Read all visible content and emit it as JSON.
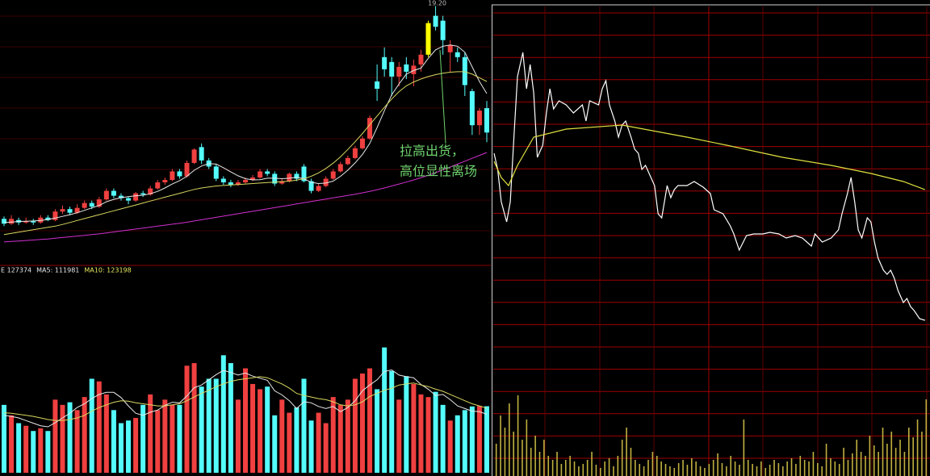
{
  "chart_data": [
    {
      "type": "candlestick",
      "peak_label": "19.20",
      "annotation": [
        "拉高出货，",
        "高位显性离场"
      ],
      "annotation_color": "#6fd36f",
      "up_color": "#f04040",
      "down_color": "#54fcfc",
      "highlight": 58,
      "highlight_color": "#ffff00",
      "ylim": [
        8.5,
        19.45
      ],
      "ohlc": [
        [
          10.45,
          10.55,
          10.15,
          10.25
        ],
        [
          10.25,
          10.6,
          10.2,
          10.45
        ],
        [
          10.4,
          10.5,
          10.2,
          10.3
        ],
        [
          10.3,
          10.5,
          10.25,
          10.35
        ],
        [
          10.35,
          10.45,
          10.2,
          10.3
        ],
        [
          10.3,
          10.6,
          10.25,
          10.5
        ],
        [
          10.5,
          10.6,
          10.35,
          10.4
        ],
        [
          10.4,
          10.85,
          10.35,
          10.75
        ],
        [
          10.75,
          11.0,
          10.65,
          10.85
        ],
        [
          10.85,
          10.95,
          10.6,
          10.7
        ],
        [
          10.7,
          11.05,
          10.65,
          10.9
        ],
        [
          10.9,
          11.2,
          10.85,
          11.1
        ],
        [
          11.1,
          11.2,
          10.85,
          10.95
        ],
        [
          10.95,
          11.35,
          10.9,
          11.25
        ],
        [
          11.25,
          11.7,
          11.2,
          11.6
        ],
        [
          11.6,
          11.7,
          11.3,
          11.4
        ],
        [
          11.4,
          11.5,
          11.2,
          11.3
        ],
        [
          11.3,
          11.35,
          11.05,
          11.2
        ],
        [
          11.2,
          11.55,
          11.15,
          11.5
        ],
        [
          11.5,
          11.6,
          11.35,
          11.45
        ],
        [
          11.45,
          11.8,
          11.4,
          11.7
        ],
        [
          11.7,
          12.05,
          11.65,
          11.95
        ],
        [
          11.95,
          12.15,
          11.85,
          12.05
        ],
        [
          12.05,
          12.5,
          12.0,
          12.4
        ],
        [
          12.4,
          12.5,
          12.1,
          12.2
        ],
        [
          12.2,
          12.85,
          12.15,
          12.75
        ],
        [
          12.75,
          13.35,
          12.7,
          13.3
        ],
        [
          13.4,
          13.55,
          12.7,
          12.85
        ],
        [
          12.85,
          12.95,
          12.5,
          12.6
        ],
        [
          12.6,
          12.7,
          12.0,
          12.1
        ],
        [
          12.1,
          12.2,
          11.85,
          11.95
        ],
        [
          11.95,
          12.05,
          11.75,
          11.85
        ],
        [
          11.85,
          12.05,
          11.8,
          11.95
        ],
        [
          11.95,
          12.15,
          11.9,
          12.05
        ],
        [
          12.05,
          12.25,
          12.0,
          12.15
        ],
        [
          12.15,
          12.5,
          12.1,
          12.4
        ],
        [
          12.4,
          12.5,
          12.2,
          12.3
        ],
        [
          12.3,
          12.4,
          11.8,
          11.9
        ],
        [
          11.9,
          12.1,
          11.85,
          12.0
        ],
        [
          12.0,
          12.35,
          11.95,
          12.3
        ],
        [
          12.3,
          12.4,
          12.0,
          12.1
        ],
        [
          12.6,
          12.7,
          11.95,
          12.0
        ],
        [
          12.0,
          12.1,
          11.5,
          11.6
        ],
        [
          11.6,
          11.9,
          11.55,
          11.8
        ],
        [
          11.8,
          12.2,
          11.75,
          12.1
        ],
        [
          12.1,
          12.5,
          12.05,
          12.4
        ],
        [
          12.4,
          12.8,
          12.35,
          12.7
        ],
        [
          12.7,
          13.05,
          12.65,
          12.95
        ],
        [
          12.95,
          13.45,
          12.9,
          13.35
        ],
        [
          13.35,
          13.85,
          13.3,
          13.75
        ],
        [
          13.75,
          14.7,
          13.7,
          14.6
        ],
        [
          16.1,
          16.8,
          15.3,
          15.8
        ],
        [
          17.1,
          17.5,
          16.3,
          16.6
        ],
        [
          16.9,
          17.1,
          15.5,
          16.3
        ],
        [
          16.3,
          16.9,
          15.9,
          16.7
        ],
        [
          16.8,
          17.1,
          16.2,
          16.5
        ],
        [
          16.4,
          17.0,
          15.9,
          16.75
        ],
        [
          16.8,
          17.4,
          16.5,
          17.2
        ],
        [
          17.2,
          18.6,
          17.1,
          18.5
        ],
        [
          18.8,
          19.2,
          18.2,
          18.35
        ],
        [
          18.6,
          18.8,
          17.2,
          17.8
        ],
        [
          17.3,
          17.8,
          16.5,
          17.6
        ],
        [
          17.3,
          17.5,
          16.9,
          17.1
        ],
        [
          17.1,
          17.3,
          15.5,
          15.95
        ],
        [
          15.7,
          15.8,
          13.9,
          14.3
        ],
        [
          14.3,
          15.0,
          13.9,
          14.9
        ],
        [
          15.0,
          15.3,
          13.6,
          14.0
        ]
      ],
      "lines": [
        {
          "color": "#e8e8e8",
          "values": [
            10.3,
            10.32,
            10.34,
            10.35,
            10.36,
            10.38,
            10.42,
            10.48,
            10.55,
            10.62,
            10.7,
            10.8,
            10.9,
            11.0,
            11.15,
            11.25,
            11.32,
            11.36,
            11.4,
            11.42,
            11.48,
            11.58,
            11.72,
            11.88,
            12.02,
            12.2,
            12.45,
            12.62,
            12.72,
            12.7,
            12.55,
            12.38,
            12.22,
            12.1,
            12.05,
            12.06,
            12.12,
            12.12,
            12.1,
            12.12,
            12.16,
            12.1,
            11.95,
            11.9,
            11.92,
            12.0,
            12.2,
            12.45,
            12.75,
            13.1,
            13.55,
            14.2,
            14.9,
            15.55,
            16.0,
            16.4,
            16.55,
            16.65,
            17.05,
            17.4,
            17.55,
            17.6,
            17.55,
            17.3,
            16.7,
            16.1,
            15.6
          ]
        },
        {
          "color": "#d8d860",
          "values": [
            9.8,
            9.85,
            9.9,
            9.95,
            10.0,
            10.05,
            10.1,
            10.15,
            10.22,
            10.3,
            10.38,
            10.46,
            10.54,
            10.62,
            10.7,
            10.78,
            10.86,
            10.94,
            11.02,
            11.1,
            11.18,
            11.26,
            11.34,
            11.42,
            11.5,
            11.58,
            11.66,
            11.72,
            11.76,
            11.8,
            11.82,
            11.84,
            11.86,
            11.88,
            11.9,
            11.92,
            11.94,
            11.96,
            11.98,
            12.0,
            12.04,
            12.1,
            12.2,
            12.34,
            12.52,
            12.74,
            13.0,
            13.3,
            13.62,
            13.96,
            14.32,
            14.68,
            15.04,
            15.38,
            15.68,
            15.92,
            16.08,
            16.2,
            16.3,
            16.38,
            16.44,
            16.48,
            16.5,
            16.5,
            16.4,
            16.25,
            16.1
          ]
        },
        {
          "color": "#d030d0",
          "values": [
            9.5,
            9.52,
            9.54,
            9.56,
            9.58,
            9.6,
            9.62,
            9.65,
            9.68,
            9.71,
            9.74,
            9.77,
            9.8,
            9.83,
            9.87,
            9.91,
            9.95,
            9.99,
            10.03,
            10.07,
            10.11,
            10.15,
            10.19,
            10.23,
            10.27,
            10.31,
            10.36,
            10.41,
            10.46,
            10.51,
            10.56,
            10.61,
            10.66,
            10.71,
            10.76,
            10.81,
            10.86,
            10.91,
            10.96,
            11.01,
            11.06,
            11.11,
            11.16,
            11.21,
            11.26,
            11.31,
            11.36,
            11.41,
            11.46,
            11.52,
            11.58,
            11.65,
            11.72,
            11.8,
            11.88,
            11.96,
            12.05,
            12.14,
            12.24,
            12.35,
            12.46,
            12.58,
            12.7,
            12.82,
            12.94,
            13.06,
            13.18
          ]
        }
      ]
    },
    {
      "type": "bar",
      "legend": [
        {
          "text": "E 127374",
          "color": "#e8e8e8"
        },
        {
          "text": "MA5: 111981",
          "color": "#e8e8e8"
        },
        {
          "text": "MA10: 123198",
          "color": "#e8e860"
        }
      ],
      "ylim": [
        0,
        380000
      ],
      "values": [
        130000,
        110000,
        95000,
        90000,
        80000,
        85000,
        80000,
        140000,
        130000,
        135000,
        120000,
        145000,
        180000,
        175000,
        150000,
        120000,
        95000,
        100000,
        105000,
        130000,
        150000,
        120000,
        140000,
        130000,
        130000,
        205000,
        210000,
        165000,
        180000,
        180000,
        225000,
        210000,
        140000,
        200000,
        170000,
        160000,
        165000,
        110000,
        140000,
        115000,
        125000,
        180000,
        100000,
        115000,
        95000,
        145000,
        130000,
        140000,
        180000,
        190000,
        200000,
        160000,
        240000,
        195000,
        140000,
        185000,
        170000,
        150000,
        145000,
        155000,
        130000,
        100000,
        110000,
        120000,
        127000,
        128000,
        127374
      ],
      "lines": [
        {
          "color": "#e8e8e8",
          "values": [
            110000,
            108000,
            105000,
            100000,
            95000,
            90000,
            88000,
            96000,
            105000,
            114000,
            125000,
            132000,
            142000,
            150000,
            154000,
            154000,
            144000,
            128000,
            114000,
            110000,
            116000,
            120000,
            129000,
            135000,
            134000,
            147000,
            163000,
            168000,
            178000,
            188000,
            196000,
            192000,
            187000,
            191000,
            185000,
            181000,
            177000,
            157000,
            149000,
            138000,
            123000,
            136000,
            134000,
            127000,
            123000,
            127000,
            117000,
            125000,
            138000,
            157000,
            168000,
            178000,
            194000,
            197000,
            187000,
            184000,
            182000,
            169000,
            160000,
            148000,
            150000,
            140000,
            128000,
            123000,
            118000,
            117000,
            111981
          ]
        },
        {
          "color": "#d8d860",
          "values": [
            115000,
            114000,
            112000,
            110000,
            108000,
            105000,
            102000,
            100000,
            100000,
            102000,
            105000,
            110000,
            118000,
            125000,
            130000,
            135000,
            138000,
            137000,
            134000,
            132000,
            130000,
            128000,
            128000,
            130000,
            132000,
            138000,
            145000,
            152000,
            158000,
            165000,
            170000,
            175000,
            178000,
            180000,
            182000,
            184000,
            182000,
            176000,
            170000,
            162000,
            152000,
            148000,
            145000,
            142000,
            140000,
            136000,
            130000,
            128000,
            130000,
            136000,
            146000,
            152000,
            158000,
            162000,
            168000,
            170000,
            172000,
            168000,
            165000,
            160000,
            156000,
            150000,
            144000,
            138000,
            132000,
            128000,
            123198
          ]
        }
      ]
    },
    {
      "type": "line",
      "xlim": [
        0,
        240
      ],
      "ylim": [
        0,
        392
      ],
      "series": [
        {
          "color": "#ffffff",
          "x": [
            0,
            2,
            4,
            7,
            9,
            11,
            13,
            16,
            18,
            20,
            22,
            24,
            27,
            29,
            31,
            33,
            36,
            40,
            44,
            49,
            51,
            53,
            58,
            60,
            62,
            64,
            67,
            69,
            71,
            73,
            76,
            78,
            80,
            82,
            84,
            87,
            89,
            91,
            93,
            96,
            98,
            100,
            102,
            107,
            111,
            116,
            120,
            122,
            127,
            131,
            133,
            136,
            140,
            144,
            149,
            153,
            158,
            162,
            167,
            171,
            176,
            178,
            182,
            187,
            191,
            193,
            196,
            198,
            200,
            202,
            204,
            207,
            209,
            211,
            213,
            216,
            218,
            220,
            222,
            224,
            227,
            229,
            231,
            233,
            236,
            239
          ],
          "values": [
            210,
            190,
            150,
            125,
            150,
            230,
            305,
            335,
            290,
            320,
            285,
            205,
            220,
            260,
            290,
            265,
            275,
            270,
            260,
            270,
            250,
            275,
            270,
            290,
            300,
            270,
            250,
            230,
            245,
            250,
            230,
            215,
            210,
            190,
            195,
            180,
            170,
            135,
            130,
            170,
            155,
            165,
            170,
            170,
            175,
            168,
            160,
            140,
            135,
            120,
            110,
            90,
            108,
            110,
            110,
            112,
            110,
            105,
            108,
            105,
            95,
            110,
            100,
            105,
            115,
            135,
            160,
            180,
            150,
            115,
            105,
            130,
            125,
            100,
            80,
            65,
            60,
            65,
            55,
            40,
            25,
            30,
            20,
            15,
            5,
            3
          ]
        },
        {
          "color": "#e0e040",
          "x": [
            0,
            4,
            8,
            13,
            22,
            40,
            71,
            107,
            129,
            160,
            187,
            209,
            227,
            239
          ],
          "values": [
            200,
            180,
            170,
            195,
            230,
            240,
            245,
            230,
            220,
            205,
            195,
            185,
            175,
            165
          ]
        }
      ]
    },
    {
      "type": "bar",
      "color": "#c0b040",
      "ylim": [
        0,
        110
      ],
      "values": [
        40,
        75,
        60,
        90,
        55,
        100,
        45,
        70,
        35,
        50,
        30,
        45,
        25,
        20,
        30,
        15,
        20,
        25,
        18,
        12,
        15,
        20,
        30,
        14,
        10,
        18,
        22,
        12,
        25,
        45,
        60,
        35,
        20,
        15,
        12,
        20,
        30,
        25,
        18,
        15,
        12,
        10,
        16,
        20,
        14,
        22,
        18,
        12,
        10,
        15,
        20,
        28,
        16,
        12,
        25,
        18,
        14,
        70,
        20,
        15,
        12,
        18,
        10,
        14,
        20,
        16,
        12,
        18,
        22,
        15,
        25,
        20,
        18,
        30,
        16,
        12,
        40,
        22,
        18,
        15,
        35,
        20,
        28,
        45,
        30,
        25,
        50,
        38,
        30,
        60,
        40,
        55,
        35,
        45,
        30,
        60,
        48,
        70,
        55,
        95
      ]
    }
  ]
}
